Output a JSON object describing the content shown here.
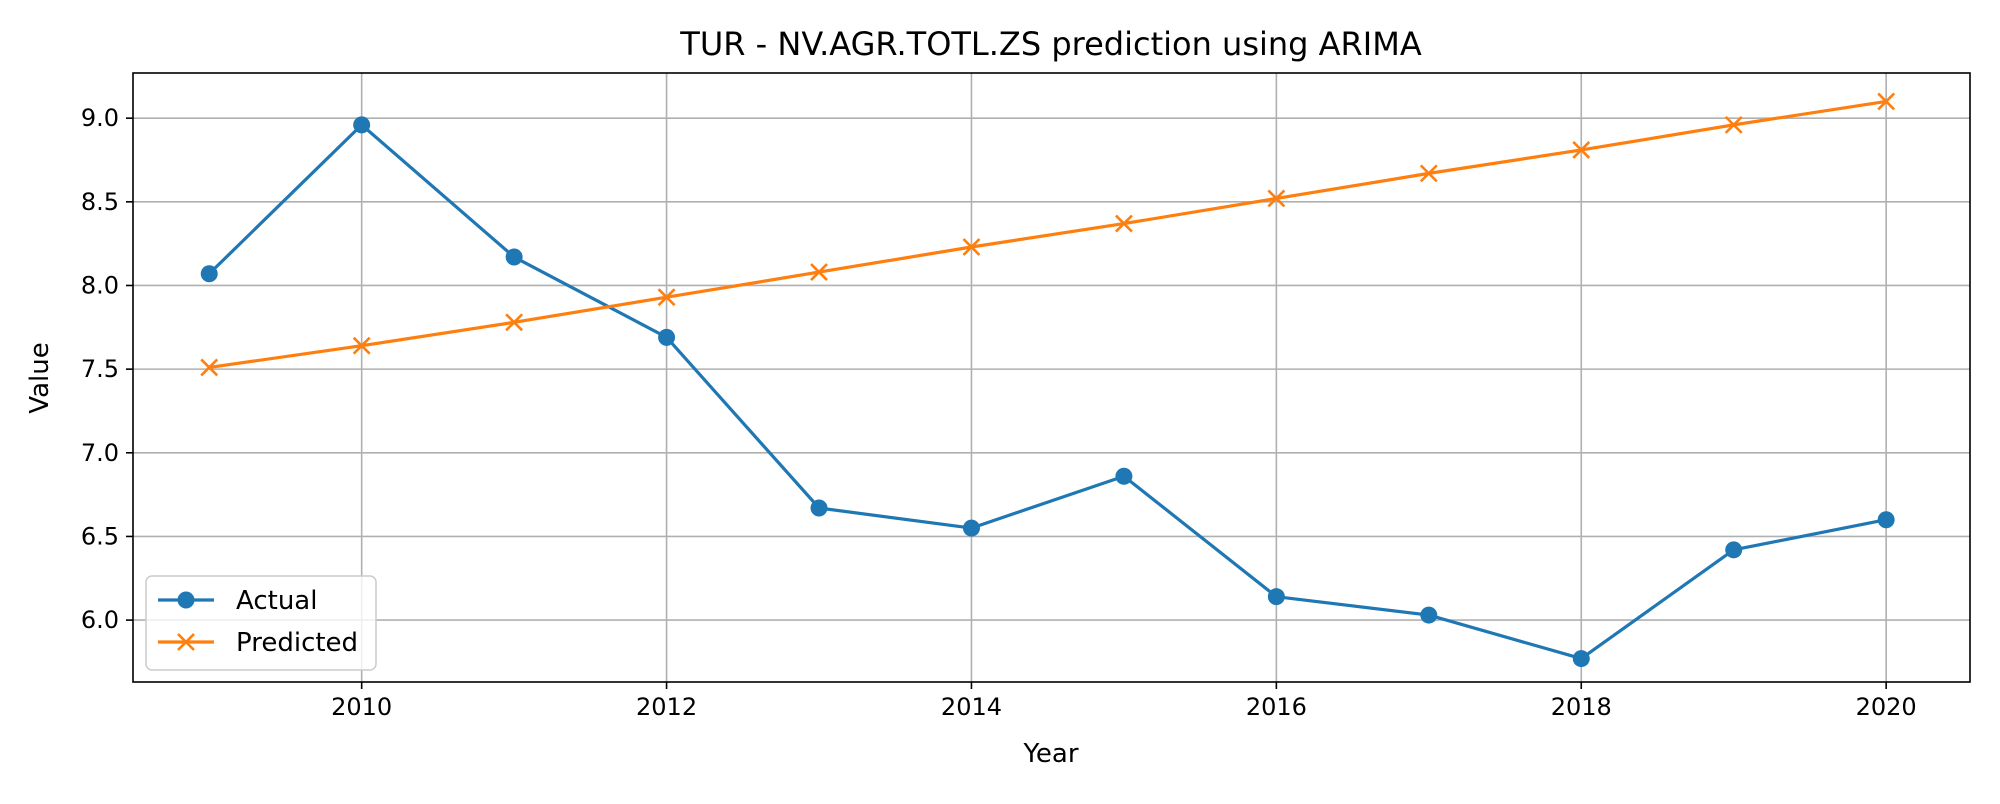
{
  "chart_data": {
    "type": "line",
    "title": "TUR - NV.AGR.TOTL.ZS prediction using ARIMA",
    "xlabel": "Year",
    "ylabel": "Value",
    "x": [
      2009,
      2010,
      2011,
      2012,
      2013,
      2014,
      2015,
      2016,
      2017,
      2018,
      2019,
      2020
    ],
    "xlim": [
      2008.5,
      2020.55
    ],
    "ylim": [
      5.63,
      9.27
    ],
    "x_ticks": [
      2010,
      2012,
      2014,
      2016,
      2018,
      2020
    ],
    "y_ticks": [
      6.0,
      6.5,
      7.0,
      7.5,
      8.0,
      8.5,
      9.0
    ],
    "x_tick_labels": [
      "2010",
      "2012",
      "2014",
      "2016",
      "2018",
      "2020"
    ],
    "y_tick_labels": [
      "6.0",
      "6.5",
      "7.0",
      "7.5",
      "8.0",
      "8.5",
      "9.0"
    ],
    "grid": true,
    "legend_position": "lower-left",
    "series": [
      {
        "name": "Actual",
        "marker": "circle",
        "color": "#1f77b4",
        "values": [
          8.07,
          8.96,
          8.17,
          7.69,
          6.67,
          6.55,
          6.86,
          6.14,
          6.03,
          5.77,
          6.42,
          6.6
        ]
      },
      {
        "name": "Predicted",
        "marker": "x",
        "color": "#ff7f0e",
        "values": [
          7.51,
          7.64,
          7.78,
          7.93,
          8.08,
          8.23,
          8.37,
          8.52,
          8.67,
          8.81,
          8.96,
          9.1
        ]
      }
    ]
  }
}
